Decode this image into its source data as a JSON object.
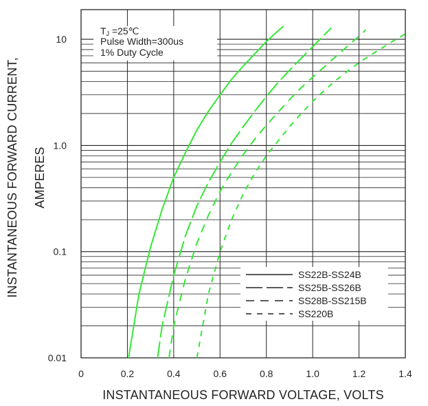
{
  "chart_data": {
    "type": "line",
    "xlabel": "INSTANTANEOUS FORWARD VOLTAGE, VOLTS",
    "ylabel_line1": "INSTANTANEOUS FORWARD CURRENT,",
    "ylabel_line2": "AMPERES",
    "x_scale": "linear",
    "y_scale": "log",
    "xlim": [
      0,
      1.4
    ],
    "ylim": [
      0.01,
      20
    ],
    "x_ticks": [
      "0",
      "0.2",
      "0.4",
      "0.6",
      "0.8",
      "1.0",
      "1.2",
      "1.4"
    ],
    "x_tick_values": [
      0,
      0.2,
      0.4,
      0.6,
      0.8,
      1.0,
      1.2,
      1.4
    ],
    "y_ticks": [
      "0.01",
      "0.1",
      "1.0",
      "10"
    ],
    "y_tick_values": [
      0.01,
      0.1,
      1.0,
      10
    ],
    "grid": true,
    "legend_position": "bottom-right",
    "conditions": {
      "tj_main": "T",
      "tj_sub": "J",
      "tj_rest": " =25℃",
      "pulse": "Pulse Width=300us",
      "duty": "1% Duty Cycle"
    },
    "series_color": "#33e833",
    "series": [
      {
        "name": "SS22B-SS24B",
        "dash": "solid",
        "x": [
          0.205,
          0.25,
          0.3,
          0.35,
          0.4,
          0.45,
          0.5,
          0.55,
          0.6,
          0.65,
          0.7,
          0.75,
          0.8,
          0.85,
          0.875
        ],
        "y": [
          0.01,
          0.04,
          0.11,
          0.25,
          0.5,
          0.85,
          1.4,
          2.1,
          3.0,
          4.2,
          5.6,
          7.3,
          9.5,
          12.0,
          13.3
        ]
      },
      {
        "name": "SS25B-SS26B",
        "dash": "long",
        "x": [
          0.33,
          0.35,
          0.4,
          0.45,
          0.5,
          0.55,
          0.6,
          0.65,
          0.7,
          0.75,
          0.8,
          0.85,
          0.9,
          0.95,
          1.0,
          1.05,
          1.08
        ],
        "y": [
          0.01,
          0.02,
          0.06,
          0.14,
          0.27,
          0.45,
          0.7,
          1.05,
          1.5,
          2.1,
          2.9,
          3.9,
          5.1,
          6.6,
          8.5,
          11.0,
          12.8
        ]
      },
      {
        "name": "SS28B-SS215B",
        "dash": "medium",
        "x": [
          0.38,
          0.4,
          0.45,
          0.5,
          0.55,
          0.6,
          0.65,
          0.7,
          0.75,
          0.8,
          0.85,
          0.9,
          0.95,
          1.0,
          1.05,
          1.1,
          1.15,
          1.2,
          1.23
        ],
        "y": [
          0.01,
          0.02,
          0.055,
          0.12,
          0.22,
          0.37,
          0.56,
          0.82,
          1.15,
          1.55,
          2.05,
          2.7,
          3.5,
          4.4,
          5.5,
          6.9,
          8.6,
          10.7,
          12.3
        ]
      },
      {
        "name": "SS220B",
        "dash": "short",
        "x": [
          0.5,
          0.55,
          0.6,
          0.65,
          0.7,
          0.75,
          0.8,
          0.85,
          0.9,
          0.95,
          1.0,
          1.05,
          1.1,
          1.15,
          1.2,
          1.25,
          1.3,
          1.35,
          1.4
        ],
        "y": [
          0.01,
          0.04,
          0.1,
          0.2,
          0.35,
          0.55,
          0.8,
          1.1,
          1.5,
          2.0,
          2.6,
          3.3,
          4.1,
          5.0,
          6.0,
          7.1,
          8.3,
          9.7,
          11.2
        ]
      }
    ]
  }
}
